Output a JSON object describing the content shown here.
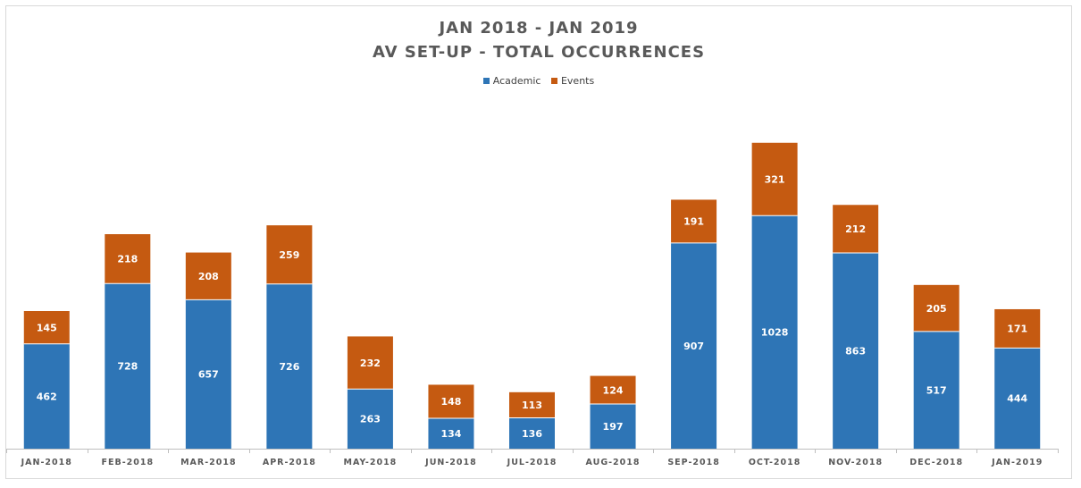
{
  "chart_data": {
    "type": "bar",
    "stacked": true,
    "title": "JAN 2018 - JAN 2019",
    "subtitle": "AV SET-UP - TOTAL OCCURRENCES",
    "xlabel": "",
    "ylabel": "",
    "legend_position": "top-center",
    "grid": false,
    "ylim": [
      0,
      1400
    ],
    "categories": [
      "JAN-2018",
      "FEB-2018",
      "MAR-2018",
      "APR-2018",
      "MAY-2018",
      "JUN-2018",
      "JUL-2018",
      "AUG-2018",
      "SEP-2018",
      "OCT-2018",
      "NOV-2018",
      "DEC-2018",
      "JAN-2019"
    ],
    "series": [
      {
        "name": "Academic",
        "color": "#2e75b6",
        "values": [
          462,
          728,
          657,
          726,
          263,
          134,
          136,
          197,
          907,
          1028,
          863,
          517,
          444
        ]
      },
      {
        "name": "Events",
        "color": "#c55a11",
        "values": [
          145,
          218,
          208,
          259,
          232,
          148,
          113,
          124,
          191,
          321,
          212,
          205,
          171
        ]
      }
    ]
  }
}
